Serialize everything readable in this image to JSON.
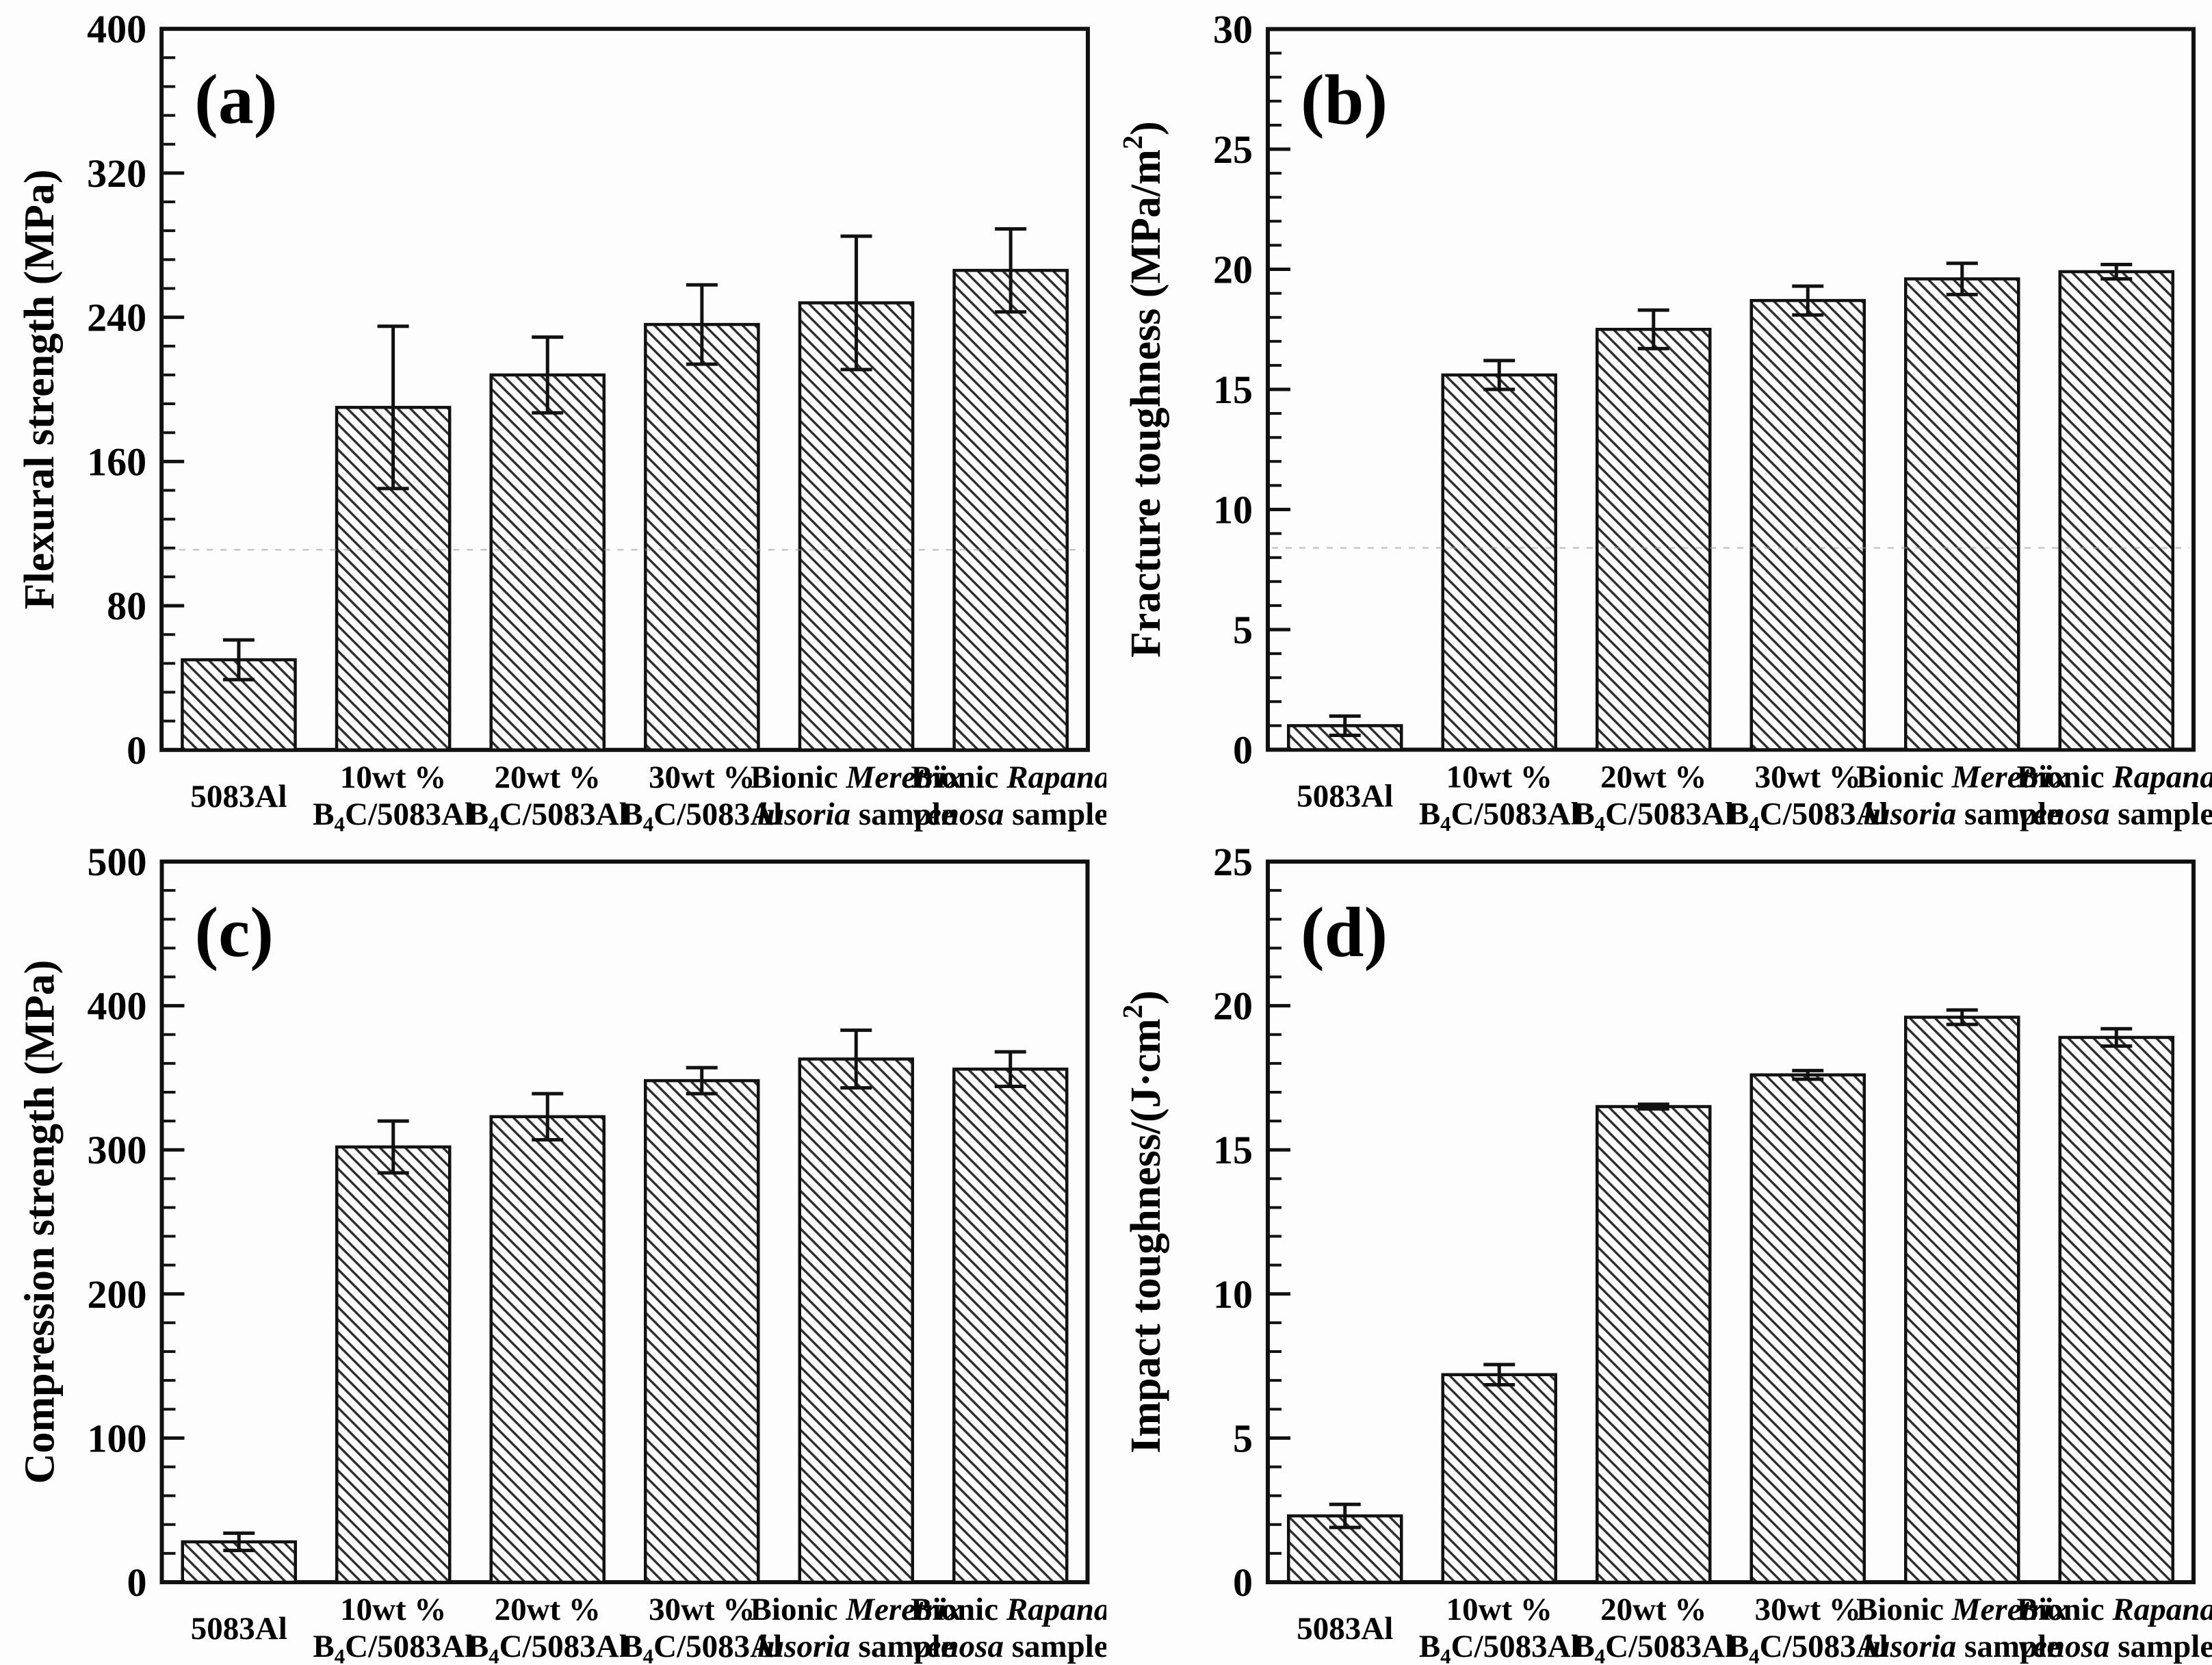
{
  "figure": {
    "background": "#fdfdfd",
    "axis_color": "#111111",
    "bar_fill": "#ffffff",
    "hatch_color": "#2b2b2b",
    "error_bar_color": "#111111",
    "artifact_line_color": "#9a9a9a"
  },
  "category_labels": [
    {
      "lines": [
        [
          {
            "t": "5083Al"
          }
        ]
      ]
    },
    {
      "lines": [
        [
          {
            "t": "10wt %"
          }
        ],
        [
          {
            "t": "B"
          },
          {
            "t": "4",
            "sub": true
          },
          {
            "t": "C/5083Al"
          }
        ]
      ]
    },
    {
      "lines": [
        [
          {
            "t": "20wt %"
          }
        ],
        [
          {
            "t": "B"
          },
          {
            "t": "4",
            "sub": true
          },
          {
            "t": "C/5083Al"
          }
        ]
      ]
    },
    {
      "lines": [
        [
          {
            "t": "30wt %"
          }
        ],
        [
          {
            "t": "B"
          },
          {
            "t": "4",
            "sub": true
          },
          {
            "t": "C/5083Al"
          }
        ]
      ]
    },
    {
      "lines": [
        [
          {
            "t": "Bionic "
          },
          {
            "t": "Meretrix",
            "i": true
          }
        ],
        [
          {
            "t": "lusoria",
            "i": true
          },
          {
            "t": " sample"
          }
        ]
      ]
    },
    {
      "lines": [
        [
          {
            "t": "Bionic "
          },
          {
            "t": "Rapana",
            "i": true
          }
        ],
        [
          {
            "t": "venosa",
            "i": true
          },
          {
            "t": " sample"
          }
        ]
      ]
    }
  ],
  "chart_data": [
    {
      "id": "a",
      "type": "bar",
      "panel_label": "(a)",
      "ylabel": "Flexural strength (MPa)",
      "ylabel_segments": [
        {
          "t": "Flexural strength (MPa)"
        }
      ],
      "ylim": [
        0,
        400
      ],
      "ytick_step": 80,
      "yminor_step": 16,
      "ytick_labels": [
        "0",
        "80",
        "160",
        "240",
        "320",
        "400"
      ],
      "categories": [
        "5083Al",
        "10wt % B4C/5083Al",
        "20wt % B4C/5083Al",
        "30wt % B4C/5083Al",
        "Bionic Meretrix lusoria sample",
        "Bionic Rapana venosa sample"
      ],
      "values": [
        50,
        190,
        208,
        236,
        248,
        266
      ],
      "errors": [
        11,
        45,
        21,
        22,
        37,
        23
      ],
      "faint_dashed_line_y": 111,
      "grid": false,
      "legend": null
    },
    {
      "id": "b",
      "type": "bar",
      "panel_label": "(b)",
      "ylabel": "Fracture toughness (MPa/m2)",
      "ylabel_segments": [
        {
          "t": "Fracture toughness (MPa/m"
        },
        {
          "t": "2",
          "sup": true
        },
        {
          "t": ")"
        }
      ],
      "ylim": [
        0,
        30
      ],
      "ytick_step": 5,
      "yminor_step": 1,
      "ytick_labels": [
        "0",
        "5",
        "10",
        "15",
        "20",
        "25",
        "30"
      ],
      "categories": [
        "5083Al",
        "10wt % B4C/5083Al",
        "20wt % B4C/5083Al",
        "30wt % B4C/5083Al",
        "Bionic Meretrix lusoria sample",
        "Bionic Rapana venosa sample"
      ],
      "values": [
        1.0,
        15.6,
        17.5,
        18.7,
        19.6,
        19.9
      ],
      "errors": [
        0.4,
        0.6,
        0.8,
        0.6,
        0.65,
        0.3
      ],
      "faint_dashed_line_y": 8.4,
      "grid": false,
      "legend": null
    },
    {
      "id": "c",
      "type": "bar",
      "panel_label": "(c)",
      "ylabel": "Compression strength (MPa)",
      "ylabel_segments": [
        {
          "t": "Compression strength (MPa)"
        }
      ],
      "ylim": [
        0,
        500
      ],
      "ytick_step": 100,
      "yminor_step": 20,
      "ytick_labels": [
        "0",
        "100",
        "200",
        "300",
        "400",
        "500"
      ],
      "categories": [
        "5083Al",
        "10wt % B4C/5083Al",
        "20wt % B4C/5083Al",
        "30wt % B4C/5083Al",
        "Bionic Meretrix lusoria sample",
        "Bionic Rapana venosa sample"
      ],
      "values": [
        28,
        302,
        323,
        348,
        363,
        356
      ],
      "errors": [
        6,
        18,
        16,
        9,
        20,
        12
      ],
      "faint_dashed_line_y": null,
      "grid": false,
      "legend": null
    },
    {
      "id": "d",
      "type": "bar",
      "panel_label": "(d)",
      "ylabel": "Impact toughness/(J·cm2)",
      "ylabel_segments": [
        {
          "t": "Impact toughness/(J·cm"
        },
        {
          "t": "2",
          "sup": true
        },
        {
          "t": ")"
        }
      ],
      "ylim": [
        0,
        25
      ],
      "ytick_step": 5,
      "yminor_step": 1,
      "ytick_labels": [
        "0",
        "5",
        "10",
        "15",
        "20",
        "25"
      ],
      "categories": [
        "5083Al",
        "10wt % B4C/5083Al",
        "20wt % B4C/5083Al",
        "30wt % B4C/5083Al",
        "Bionic Meretrix lusoria sample",
        "Bionic Rapana venosa sample"
      ],
      "values": [
        2.3,
        7.2,
        16.5,
        17.6,
        19.6,
        18.9
      ],
      "errors": [
        0.4,
        0.35,
        0.08,
        0.15,
        0.25,
        0.3
      ],
      "faint_dashed_line_y": null,
      "grid": false,
      "legend": null
    }
  ]
}
